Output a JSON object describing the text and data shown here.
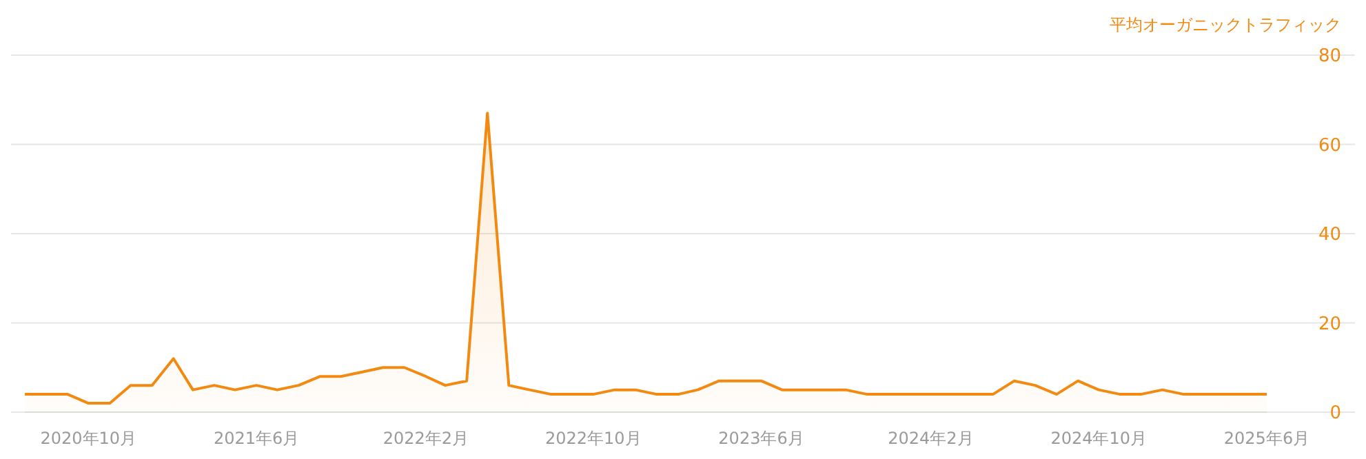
{
  "chart_data": {
    "type": "area",
    "ylabel": "平均オーガニックトラフィック",
    "color": "#f28a12",
    "x": [
      "2020-07",
      "2020-08",
      "2020-09",
      "2020-10",
      "2020-11",
      "2020-12",
      "2021-01",
      "2021-02",
      "2021-03",
      "2021-04",
      "2021-05",
      "2021-06",
      "2021-07",
      "2021-08",
      "2021-09",
      "2021-10",
      "2021-11",
      "2021-12",
      "2022-01",
      "2022-02",
      "2022-03",
      "2022-04",
      "2022-05",
      "2022-06",
      "2022-07",
      "2022-08",
      "2022-09",
      "2022-10",
      "2022-11",
      "2022-12",
      "2023-01",
      "2023-02",
      "2023-03",
      "2023-04",
      "2023-05",
      "2023-06",
      "2023-07",
      "2023-08",
      "2023-09",
      "2023-10",
      "2023-11",
      "2023-12",
      "2024-01",
      "2024-02",
      "2024-03",
      "2024-04",
      "2024-05",
      "2024-06",
      "2024-07",
      "2024-08",
      "2024-09",
      "2024-10",
      "2024-11",
      "2024-12",
      "2025-01",
      "2025-02",
      "2025-03",
      "2025-04",
      "2025-05",
      "2025-06"
    ],
    "values": [
      4,
      4,
      4,
      2,
      2,
      6,
      6,
      12,
      5,
      6,
      5,
      6,
      5,
      6,
      8,
      8,
      9,
      10,
      10,
      8,
      6,
      7,
      67,
      6,
      5,
      4,
      4,
      4,
      5,
      5,
      4,
      4,
      5,
      7,
      7,
      7,
      5,
      5,
      5,
      5,
      4,
      4,
      4,
      4,
      4,
      4,
      4,
      7,
      6,
      4,
      7,
      5,
      4,
      4,
      5,
      4,
      4,
      4,
      4,
      4
    ],
    "xticks": [
      {
        "value": "2020-10",
        "label": "2020年10月"
      },
      {
        "value": "2021-06",
        "label": "2021年6月"
      },
      {
        "value": "2022-02",
        "label": "2022年2月"
      },
      {
        "value": "2022-10",
        "label": "2022年10月"
      },
      {
        "value": "2023-06",
        "label": "2023年6月"
      },
      {
        "value": "2024-02",
        "label": "2024年2月"
      },
      {
        "value": "2024-10",
        "label": "2024年10月"
      },
      {
        "value": "2025-06",
        "label": "2025年6月"
      }
    ],
    "xlim": [
      "2020-07",
      "2025-06"
    ],
    "ylim": [
      0,
      80
    ],
    "yticks": [
      0,
      20,
      40,
      60,
      80
    ],
    "grid": "y"
  }
}
